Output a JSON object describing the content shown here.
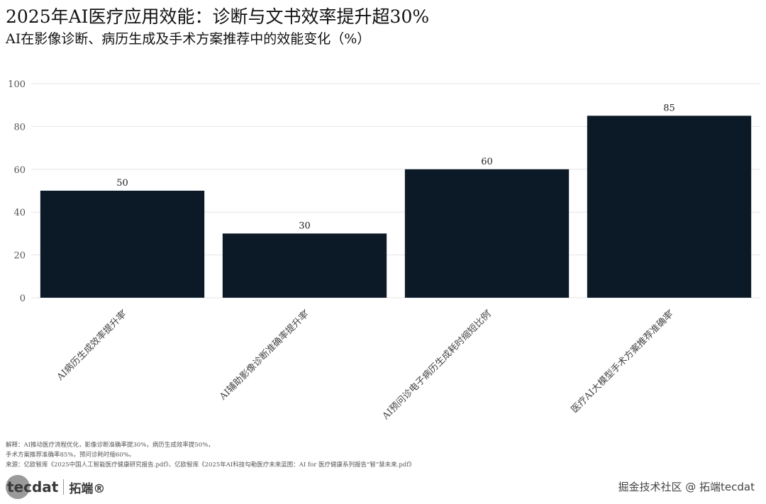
{
  "chart_data": {
    "type": "bar",
    "title": "2025年AI医疗应用效能：诊断与文书效率提升超30%",
    "subtitle": "AI在影像诊断、病历生成及手术方案推荐中的效能变化（%）",
    "categories": [
      "AI病历生成效率提升率",
      "AI辅助影像诊断准确率提升率",
      "AI预问诊电子病历生成耗时缩短比例",
      "医疗AI大模型手术方案推荐准确率"
    ],
    "values": [
      50,
      30,
      60,
      85
    ],
    "ylim": [
      0,
      100
    ],
    "yticks": [
      0,
      20,
      40,
      60,
      80,
      100
    ],
    "grid": true,
    "bar_color": "#0c1a28"
  },
  "notes": [
    "解释：AI推动医疗流程优化，影像诊断准确率提30%，病历生成效率提50%，",
    "手术方案推荐准确率85%，预问诊耗时缩60%。",
    "来源：亿欧智库《2025中国人工智能医疗健康研究报告.pdf》、亿欧智库《2025年AI科技勾勒医疗未来蓝图：AI for 医疗健康系列报告“智”慧未来.pdf》"
  ],
  "logo": {
    "text": "tecdat",
    "cn": "拓端®"
  },
  "watermark": "掘金技术社区 @ 拓端tecdat"
}
